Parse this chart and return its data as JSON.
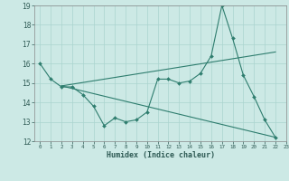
{
  "series1_x": [
    0,
    1,
    2,
    3,
    4,
    5,
    6,
    7,
    8,
    9,
    10,
    11,
    12,
    13,
    14,
    15,
    16,
    17,
    18,
    19,
    20,
    21,
    22
  ],
  "series1_y": [
    16.0,
    15.2,
    14.8,
    14.8,
    14.4,
    13.8,
    12.8,
    13.2,
    13.0,
    13.1,
    13.5,
    15.2,
    15.2,
    15.0,
    15.1,
    15.5,
    16.4,
    19.0,
    17.3,
    15.4,
    14.3,
    13.1,
    12.2
  ],
  "series2_x": [
    2,
    22
  ],
  "series2_y": [
    14.85,
    16.6
  ],
  "series3_x": [
    2,
    22
  ],
  "series3_y": [
    14.85,
    12.2
  ],
  "line_color": "#2e7d6e",
  "bg_color": "#cce9e5",
  "grid_color": "#aad4cf",
  "xlabel": "Humidex (Indice chaleur)",
  "ylim": [
    12,
    19
  ],
  "xlim": [
    -0.5,
    23
  ],
  "yticks": [
    12,
    13,
    14,
    15,
    16,
    17,
    18,
    19
  ],
  "xticks": [
    0,
    1,
    2,
    3,
    4,
    5,
    6,
    7,
    8,
    9,
    10,
    11,
    12,
    13,
    14,
    15,
    16,
    17,
    18,
    19,
    20,
    21,
    22,
    23
  ]
}
